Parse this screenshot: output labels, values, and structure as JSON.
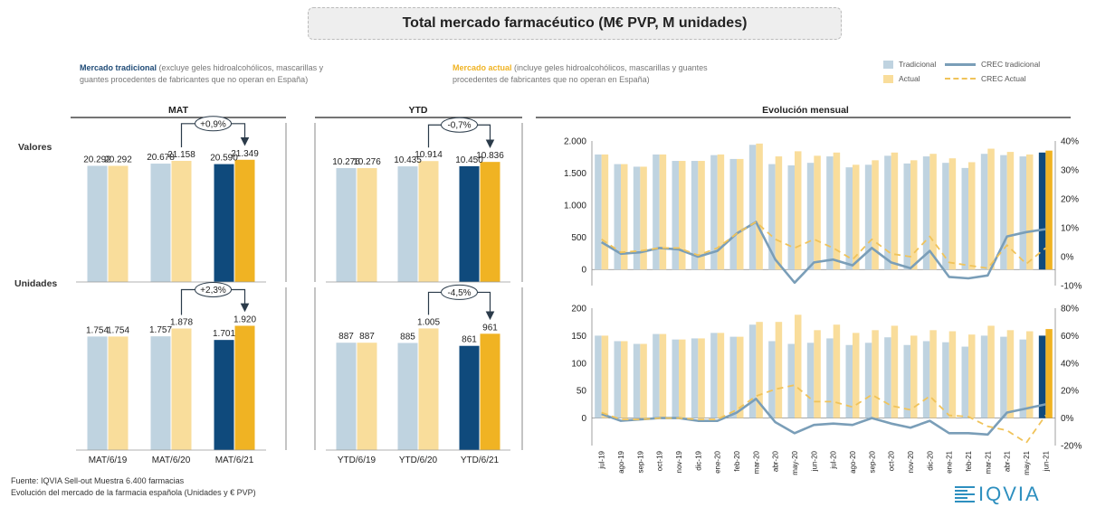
{
  "title": "Total mercado farmacéutico (M€ PVP, M unidades)",
  "legend_desc": {
    "tradicional_bold": "Mercado tradicional",
    "tradicional_rest": " (excluye geles hidroalcohólicos, mascarillas y guantes procedentes de fabricantes que no operan en España)",
    "actual_bold": "Mercado actual",
    "actual_rest": " (incluye geles hidroalcohólicos, mascarillas y guantes procedentes de fabricantes que no operan en España)"
  },
  "legend": {
    "tradicional": "Tradicional",
    "actual": "Actual",
    "crec_tradicional": "CREC tradicional",
    "crec_actual": "CREC Actual"
  },
  "colors": {
    "tradicional": "#bfd3e0",
    "actual": "#f9dd9b",
    "tradicional_last": "#0f4a7c",
    "actual_last": "#f0b323",
    "crec_tradicional": "#7a9eb8",
    "crec_actual": "#f0c35a"
  },
  "row_labels": {
    "valores": "Valores",
    "unidades": "Unidades"
  },
  "footer": {
    "line1": "Fuente: IQVIA Sell-out Muestra 6.400 farmacias",
    "line2": "Evolución del mercado de la farmacia española (Unidades y € PVP)"
  },
  "logo": "IQVIA",
  "chart_data": [
    {
      "type": "bar",
      "id": "mat",
      "title": "MAT",
      "categories": [
        "MAT/6/19",
        "MAT/6/20",
        "MAT/6/21"
      ],
      "valores": {
        "tradicional": [
          20292,
          20678,
          20590
        ],
        "actual": [
          20292,
          21158,
          21349
        ],
        "labels_tradicional": [
          "20.292",
          "20.678",
          "20.590"
        ],
        "labels_actual": [
          "20.292",
          "21.158",
          "21.349"
        ],
        "growth": "+0,9%",
        "ylim": [
          0,
          24000
        ]
      },
      "unidades": {
        "tradicional": [
          1754,
          1757,
          1701
        ],
        "actual": [
          1754,
          1878,
          1920
        ],
        "labels_tradicional": [
          "1.754",
          "1.757",
          "1.701"
        ],
        "labels_actual": [
          "1.754",
          "1.878",
          "1.920"
        ],
        "growth": "+2,3%",
        "ylim": [
          0,
          2150
        ]
      }
    },
    {
      "type": "bar",
      "id": "ytd",
      "title": "YTD",
      "categories": [
        "YTD/6/19",
        "YTD/6/20",
        "YTD/6/21"
      ],
      "valores": {
        "tradicional": [
          10276,
          10435,
          10450
        ],
        "actual": [
          10276,
          10914,
          10836
        ],
        "labels_tradicional": [
          "10.276",
          "10.435",
          "10.450"
        ],
        "labels_actual": [
          "10.276",
          "10.914",
          "10.836"
        ],
        "growth": "-0,7%",
        "ylim": [
          0,
          12400
        ]
      },
      "unidades": {
        "tradicional": [
          887,
          885,
          861
        ],
        "actual": [
          887,
          1005,
          961
        ],
        "labels_tradicional": [
          "887",
          "885",
          "861"
        ],
        "labels_actual": [
          "887",
          "1.005",
          "961"
        ],
        "growth": "-4,5%",
        "ylim": [
          0,
          1150
        ]
      }
    },
    {
      "type": "bar",
      "id": "evolucion",
      "title": "Evolución mensual",
      "categories": [
        "jul-19",
        "ago-19",
        "sep-19",
        "oct-19",
        "nov-19",
        "dic-19",
        "ene-20",
        "feb-20",
        "mar-20",
        "abr-20",
        "may-20",
        "jun-20",
        "jul-20",
        "ago-20",
        "sep-20",
        "oct-20",
        "nov-20",
        "dic-20",
        "ene-21",
        "feb-21",
        "mar-21",
        "abr-21",
        "may-21",
        "jun-21"
      ],
      "valores": {
        "ylim": [
          -250,
          2000
        ],
        "yticks": [
          0,
          500,
          1000,
          1500,
          2000
        ],
        "ytick_labels": [
          "0",
          "500",
          "1.000",
          "1.500",
          "2.000"
        ],
        "y2lim": [
          -10,
          40
        ],
        "y2ticks": [
          -10,
          0,
          10,
          20,
          30,
          40
        ],
        "y2tick_labels": [
          "-10%",
          "0%",
          "10%",
          "20%",
          "30%",
          "40%"
        ],
        "tradicional": [
          1790,
          1640,
          1600,
          1790,
          1690,
          1690,
          1780,
          1720,
          1940,
          1640,
          1620,
          1660,
          1760,
          1590,
          1630,
          1770,
          1650,
          1760,
          1660,
          1580,
          1800,
          1780,
          1760,
          1820
        ],
        "actual": [
          1790,
          1640,
          1600,
          1790,
          1690,
          1690,
          1790,
          1720,
          1960,
          1760,
          1840,
          1770,
          1820,
          1630,
          1700,
          1820,
          1700,
          1800,
          1730,
          1670,
          1880,
          1830,
          1790,
          1850
        ],
        "crec_tradicional": [
          5,
          1,
          1.5,
          3,
          2.5,
          0,
          2,
          8,
          12,
          -1,
          -9,
          -2,
          -1,
          -3,
          3,
          -2,
          -4,
          2,
          -7,
          -7.5,
          -6.5,
          7,
          8.5,
          9.5
        ],
        "crec_actual": [
          6,
          1.5,
          2,
          3,
          3,
          0.5,
          3,
          8,
          12,
          6,
          3,
          6,
          3,
          -1,
          6,
          1,
          0,
          7,
          -2,
          -3,
          -4,
          4,
          -2.5,
          3
        ]
      },
      "unidades": {
        "ylim": [
          -50,
          200
        ],
        "yticks": [
          0,
          50,
          100,
          150,
          200
        ],
        "ytick_labels": [
          "0",
          "50",
          "100",
          "150",
          "200"
        ],
        "y2lim": [
          -20,
          80
        ],
        "y2ticks": [
          -20,
          0,
          20,
          40,
          60,
          80
        ],
        "y2tick_labels": [
          "-20%",
          "0%",
          "20%",
          "40%",
          "60%",
          "80%"
        ],
        "tradicional": [
          150,
          140,
          135,
          153,
          143,
          145,
          155,
          148,
          170,
          140,
          135,
          137,
          145,
          133,
          137,
          147,
          133,
          140,
          138,
          130,
          150,
          148,
          143,
          150
        ],
        "actual": [
          150,
          140,
          135,
          153,
          143,
          145,
          155,
          148,
          175,
          175,
          188,
          160,
          170,
          155,
          160,
          168,
          150,
          160,
          158,
          152,
          168,
          160,
          158,
          162
        ],
        "crec_tradicional": [
          3,
          -2,
          -1,
          0,
          0,
          -2,
          -2,
          4,
          14,
          -3,
          -11,
          -5,
          -4,
          -5,
          0,
          -4,
          -7,
          -2,
          -11,
          -11,
          -12,
          4,
          7,
          10
        ],
        "crec_actual": [
          4,
          -1,
          -1,
          0,
          0,
          -1,
          -1,
          6,
          16,
          21,
          24,
          12,
          12,
          8,
          17,
          9,
          6,
          16,
          2,
          1,
          -6,
          -9,
          -18,
          2
        ]
      }
    }
  ]
}
